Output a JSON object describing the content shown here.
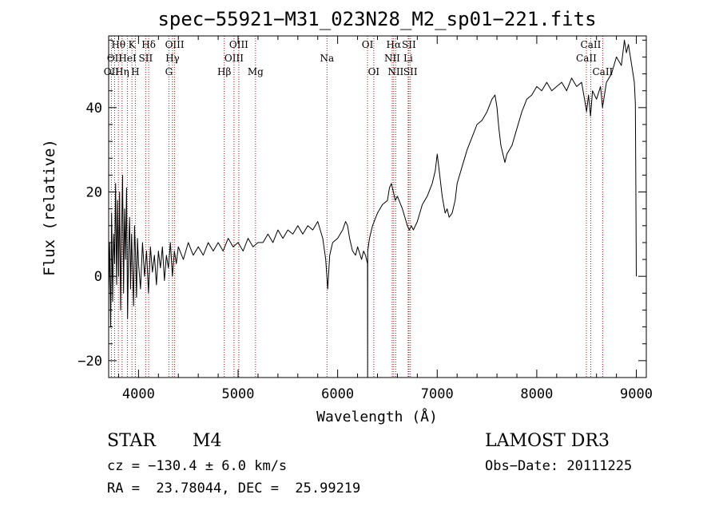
{
  "chart_data": {
    "type": "line",
    "title": "spec−55921−M31_023N28_M2_sp01−221.fits",
    "xlabel": "Wavelength (Å)",
    "ylabel": "Flux (relative)",
    "xlim": [
      3700,
      9100
    ],
    "ylim": [
      -24,
      57
    ],
    "xticks": [
      4000,
      5000,
      6000,
      7000,
      8000,
      9000
    ],
    "xtick_labels": [
      "4000",
      "5000",
      "6000",
      "7000",
      "8000",
      "9000"
    ],
    "yticks": [
      -20,
      0,
      20,
      40
    ],
    "ytick_labels": [
      "−20",
      "0",
      "20",
      "40"
    ],
    "series": [
      {
        "name": "flux",
        "points": [
          [
            3700,
            -4
          ],
          [
            3710,
            8
          ],
          [
            3720,
            -12
          ],
          [
            3730,
            15
          ],
          [
            3740,
            -6
          ],
          [
            3750,
            10
          ],
          [
            3760,
            3
          ],
          [
            3770,
            22
          ],
          [
            3780,
            -2
          ],
          [
            3790,
            18
          ],
          [
            3800,
            0
          ],
          [
            3810,
            20
          ],
          [
            3820,
            -8
          ],
          [
            3830,
            10
          ],
          [
            3840,
            24
          ],
          [
            3850,
            -4
          ],
          [
            3860,
            16
          ],
          [
            3870,
            4
          ],
          [
            3880,
            21
          ],
          [
            3890,
            -10
          ],
          [
            3900,
            6
          ],
          [
            3910,
            14
          ],
          [
            3920,
            -3
          ],
          [
            3930,
            10
          ],
          [
            3940,
            2
          ],
          [
            3950,
            -7
          ],
          [
            3960,
            12
          ],
          [
            3970,
            5
          ],
          [
            3980,
            -5
          ],
          [
            3990,
            9
          ],
          [
            4000,
            3
          ],
          [
            4020,
            -3
          ],
          [
            4040,
            8
          ],
          [
            4060,
            0
          ],
          [
            4080,
            6
          ],
          [
            4100,
            -4
          ],
          [
            4120,
            7
          ],
          [
            4140,
            1
          ],
          [
            4160,
            5
          ],
          [
            4180,
            -2
          ],
          [
            4200,
            6
          ],
          [
            4220,
            2
          ],
          [
            4240,
            7
          ],
          [
            4260,
            -1
          ],
          [
            4280,
            5
          ],
          [
            4300,
            2
          ],
          [
            4320,
            8
          ],
          [
            4340,
            0
          ],
          [
            4360,
            6
          ],
          [
            4380,
            3
          ],
          [
            4400,
            7
          ],
          [
            4450,
            4
          ],
          [
            4500,
            8
          ],
          [
            4550,
            5
          ],
          [
            4600,
            7
          ],
          [
            4650,
            5
          ],
          [
            4700,
            8
          ],
          [
            4750,
            6
          ],
          [
            4800,
            8
          ],
          [
            4850,
            6
          ],
          [
            4900,
            9
          ],
          [
            4950,
            7
          ],
          [
            5000,
            8
          ],
          [
            5050,
            6
          ],
          [
            5100,
            9
          ],
          [
            5150,
            7
          ],
          [
            5200,
            8
          ],
          [
            5250,
            8
          ],
          [
            5300,
            10
          ],
          [
            5350,
            8
          ],
          [
            5400,
            11
          ],
          [
            5450,
            9
          ],
          [
            5500,
            11
          ],
          [
            5550,
            10
          ],
          [
            5600,
            12
          ],
          [
            5650,
            10
          ],
          [
            5700,
            12
          ],
          [
            5750,
            11
          ],
          [
            5800,
            13
          ],
          [
            5850,
            9
          ],
          [
            5880,
            4
          ],
          [
            5900,
            -3
          ],
          [
            5920,
            5
          ],
          [
            5950,
            8
          ],
          [
            6000,
            9
          ],
          [
            6050,
            11
          ],
          [
            6080,
            13
          ],
          [
            6100,
            12
          ],
          [
            6120,
            9
          ],
          [
            6150,
            6
          ],
          [
            6180,
            5
          ],
          [
            6200,
            7
          ],
          [
            6240,
            4
          ],
          [
            6260,
            6
          ],
          [
            6280,
            5
          ],
          [
            6300,
            3
          ],
          [
            6301,
            -24
          ],
          [
            6302,
            6
          ],
          [
            6320,
            9
          ],
          [
            6350,
            12
          ],
          [
            6400,
            15
          ],
          [
            6450,
            17
          ],
          [
            6500,
            18
          ],
          [
            6520,
            21
          ],
          [
            6540,
            22
          ],
          [
            6560,
            20
          ],
          [
            6580,
            18
          ],
          [
            6600,
            19
          ],
          [
            6650,
            16
          ],
          [
            6700,
            12
          ],
          [
            6720,
            11
          ],
          [
            6740,
            12
          ],
          [
            6760,
            11
          ],
          [
            6800,
            13
          ],
          [
            6850,
            17
          ],
          [
            6900,
            19
          ],
          [
            6950,
            22
          ],
          [
            6980,
            25
          ],
          [
            7000,
            29
          ],
          [
            7020,
            25
          ],
          [
            7050,
            19
          ],
          [
            7080,
            15
          ],
          [
            7100,
            16
          ],
          [
            7120,
            14
          ],
          [
            7150,
            15
          ],
          [
            7180,
            18
          ],
          [
            7200,
            22
          ],
          [
            7250,
            26
          ],
          [
            7300,
            30
          ],
          [
            7350,
            33
          ],
          [
            7400,
            36
          ],
          [
            7450,
            37
          ],
          [
            7500,
            39
          ],
          [
            7550,
            42
          ],
          [
            7580,
            43
          ],
          [
            7600,
            40
          ],
          [
            7620,
            35
          ],
          [
            7640,
            31
          ],
          [
            7660,
            29
          ],
          [
            7680,
            27
          ],
          [
            7700,
            29
          ],
          [
            7750,
            31
          ],
          [
            7800,
            35
          ],
          [
            7850,
            39
          ],
          [
            7900,
            42
          ],
          [
            7950,
            43
          ],
          [
            8000,
            45
          ],
          [
            8050,
            44
          ],
          [
            8100,
            46
          ],
          [
            8150,
            44
          ],
          [
            8200,
            45
          ],
          [
            8250,
            46
          ],
          [
            8300,
            44
          ],
          [
            8350,
            47
          ],
          [
            8400,
            45
          ],
          [
            8450,
            46
          ],
          [
            8480,
            42
          ],
          [
            8500,
            39
          ],
          [
            8520,
            43
          ],
          [
            8540,
            38
          ],
          [
            8560,
            44
          ],
          [
            8600,
            42
          ],
          [
            8640,
            45
          ],
          [
            8660,
            40
          ],
          [
            8700,
            46
          ],
          [
            8750,
            48
          ],
          [
            8800,
            52
          ],
          [
            8850,
            50
          ],
          [
            8880,
            56
          ],
          [
            8900,
            53
          ],
          [
            8920,
            55
          ],
          [
            8940,
            52
          ],
          [
            8960,
            49
          ],
          [
            8980,
            46
          ],
          [
            8990,
            41
          ],
          [
            8995,
            22
          ],
          [
            9000,
            0
          ]
        ]
      }
    ],
    "lines": [
      {
        "name": "OII",
        "x": 3727,
        "label": "OII",
        "row": 2
      },
      {
        "name": "Htheta",
        "x": 3798,
        "label": "Hθ",
        "row": 0
      },
      {
        "name": "OII-b",
        "x": 3760,
        "label": "OII",
        "row": 1
      },
      {
        "name": "Heta",
        "x": 3835,
        "label": "Hη",
        "row": 2
      },
      {
        "name": "HeI",
        "x": 3889,
        "label": "HeI",
        "row": 1
      },
      {
        "name": "K",
        "x": 3934,
        "label": "K",
        "row": 0
      },
      {
        "name": "H",
        "x": 3968,
        "label": "H",
        "row": 2
      },
      {
        "name": "SII-4072",
        "x": 4072,
        "label": "SII",
        "row": 1
      },
      {
        "name": "Hdelta",
        "x": 4102,
        "label": "Hδ",
        "row": 0
      },
      {
        "name": "G",
        "x": 4305,
        "label": "G",
        "row": 2
      },
      {
        "name": "OIII-4363",
        "x": 4363,
        "label": "OIII",
        "row": 0
      },
      {
        "name": "Hgamma",
        "x": 4341,
        "label": "Hγ",
        "row": 1
      },
      {
        "name": "Hbeta",
        "x": 4861,
        "label": "Hβ",
        "row": 2
      },
      {
        "name": "OIII-4959",
        "x": 4959,
        "label": "OIII",
        "row": 1
      },
      {
        "name": "OIII-5007",
        "x": 5007,
        "label": "OIII",
        "row": 0
      },
      {
        "name": "Mg",
        "x": 5175,
        "label": "Mg",
        "row": 2
      },
      {
        "name": "Na",
        "x": 5893,
        "label": "Na",
        "row": 1
      },
      {
        "name": "OI-6300",
        "x": 6300,
        "label": "OI",
        "row": 0
      },
      {
        "name": "OI-6363",
        "x": 6363,
        "label": "OI",
        "row": 2
      },
      {
        "name": "NII-6548",
        "x": 6548,
        "label": "NII",
        "row": 1
      },
      {
        "name": "Halpha",
        "x": 6563,
        "label": "Hα",
        "row": 0
      },
      {
        "name": "NII-6583",
        "x": 6583,
        "label": "NII",
        "row": 2
      },
      {
        "name": "SII-6716",
        "x": 6716,
        "label": "SII",
        "row": 0
      },
      {
        "name": "Li",
        "x": 6708,
        "label": "Li",
        "row": 1
      },
      {
        "name": "SII-6731",
        "x": 6731,
        "label": "SII",
        "row": 2
      },
      {
        "name": "CaII-8498",
        "x": 8498,
        "label": "CaII",
        "row": 1
      },
      {
        "name": "CaII-8542",
        "x": 8542,
        "label": "CaII",
        "row": 0
      },
      {
        "name": "CaII-8662",
        "x": 8662,
        "label": "CaII",
        "row": 2
      }
    ]
  },
  "info": {
    "class": "STAR",
    "subclass": "M4",
    "cz": "cz = −130.4 ± 6.0 km/s",
    "radec": "RA =  23.78044, DEC =  25.99219",
    "survey": "LAMOST DR3",
    "obsdate": "Obs−Date: 20111225"
  },
  "colors": {
    "spectrum": "#000000",
    "line_markers": "#b01010",
    "axes": "#000000"
  }
}
